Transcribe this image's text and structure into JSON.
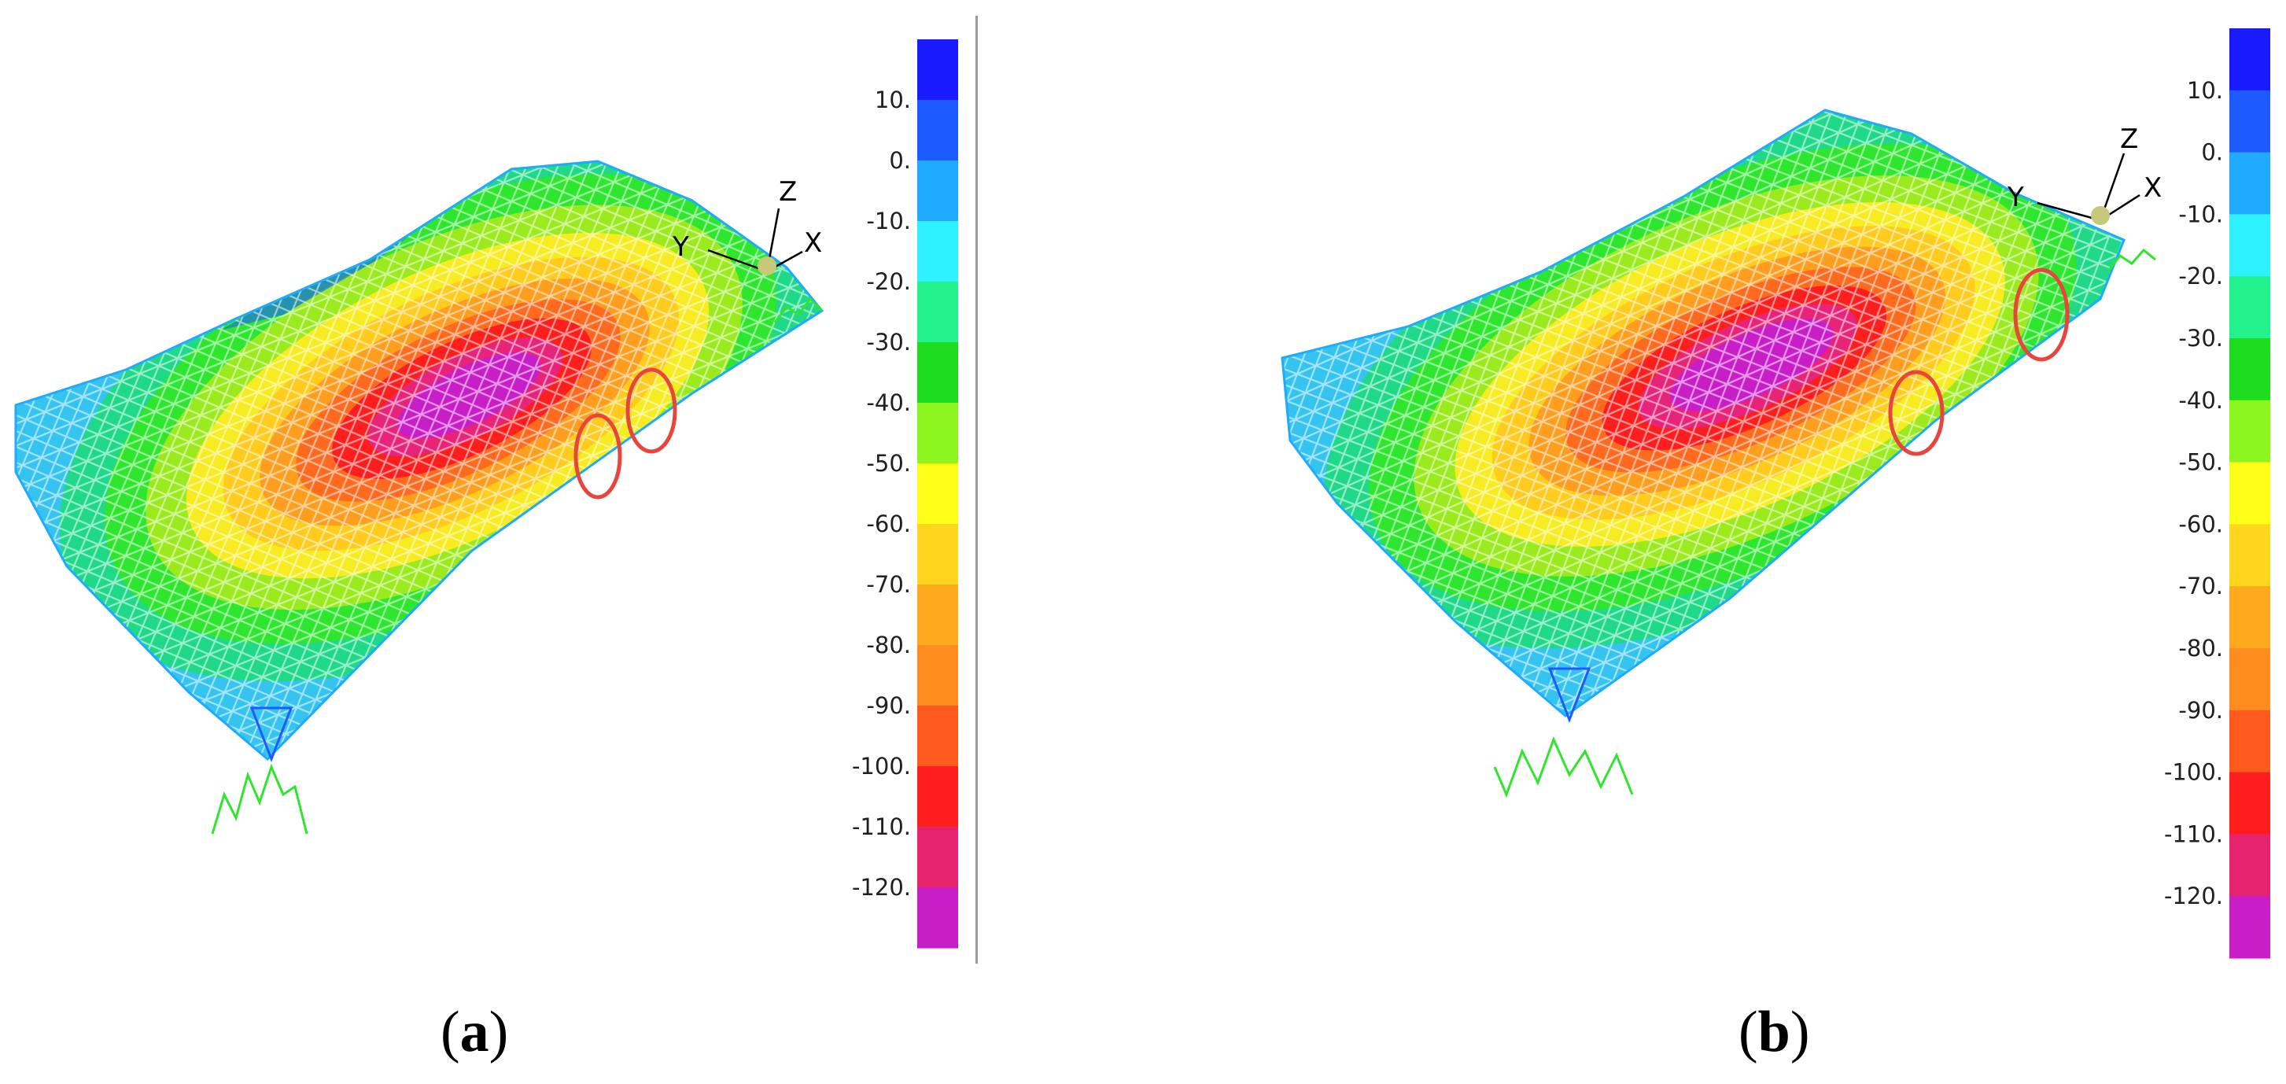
{
  "panels": [
    {
      "id": "a",
      "caption_letter": "a",
      "axis_labels": {
        "x": "X",
        "y": "Y",
        "z": "Z"
      },
      "highlighted_members": 2
    },
    {
      "id": "b",
      "caption_letter": "b",
      "axis_labels": {
        "x": "X",
        "y": "Y",
        "z": "Z"
      },
      "highlighted_members": 2
    }
  ],
  "caption_parens": {
    "open": "(",
    "close": ")"
  },
  "legend": {
    "tick_labels": [
      "10.",
      "0.",
      "-10.",
      "-20.",
      "-30.",
      "-40.",
      "-50.",
      "-60.",
      "-70.",
      "-80.",
      "-90.",
      "-100.",
      "-110.",
      "-120."
    ],
    "colors": [
      "#1a1aff",
      "#1e5bff",
      "#1eaaff",
      "#2ef2ff",
      "#23f28c",
      "#1ddc1d",
      "#8cf51e",
      "#ffff19",
      "#ffd51e",
      "#ffaa1e",
      "#ff8c1e",
      "#ff5a1e",
      "#ff1e1e",
      "#e6236e",
      "#c81ec8"
    ]
  },
  "highlight_color": "#e8453c"
}
